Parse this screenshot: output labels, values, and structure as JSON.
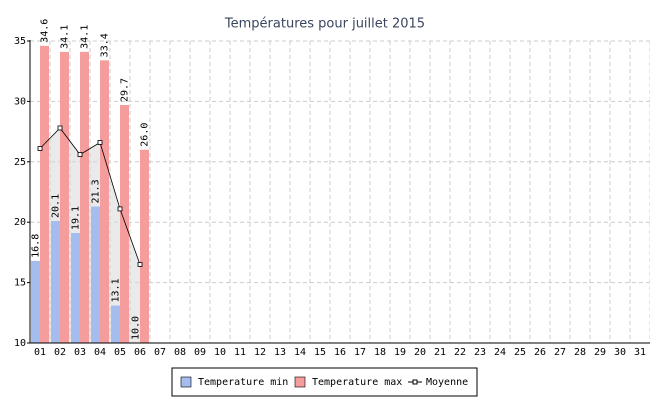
{
  "chart_data": {
    "type": "bar",
    "title": "Températures pour juillet 2015",
    "categories": [
      "01",
      "02",
      "03",
      "04",
      "05",
      "06",
      "07",
      "08",
      "09",
      "10",
      "11",
      "12",
      "13",
      "14",
      "15",
      "16",
      "17",
      "18",
      "19",
      "20",
      "21",
      "22",
      "23",
      "24",
      "25",
      "26",
      "27",
      "28",
      "29",
      "30",
      "31"
    ],
    "series": [
      {
        "name": "Temperature min",
        "color": "#a4bdee",
        "values": [
          16.8,
          20.1,
          19.1,
          21.3,
          13.1,
          10,
          null,
          null,
          null,
          null,
          null,
          null,
          null,
          null,
          null,
          null,
          null,
          null,
          null,
          null,
          null,
          null,
          null,
          null,
          null,
          null,
          null,
          null,
          null,
          null,
          null
        ],
        "value_labels": [
          "16.8",
          "20.1",
          "19.1",
          "21.3",
          "13.1",
          "10.0",
          null,
          null,
          null,
          null,
          null,
          null,
          null,
          null,
          null,
          null,
          null,
          null,
          null,
          null,
          null,
          null,
          null,
          null,
          null,
          null,
          null,
          null,
          null,
          null,
          null
        ]
      },
      {
        "name": "Temperature max",
        "color": "#f59c9c",
        "values": [
          34.6,
          34.1,
          34.1,
          33.4,
          29.7,
          26,
          null,
          null,
          null,
          null,
          null,
          null,
          null,
          null,
          null,
          null,
          null,
          null,
          null,
          null,
          null,
          null,
          null,
          null,
          null,
          null,
          null,
          null,
          null,
          null,
          null
        ],
        "value_labels": [
          "34.6",
          "34.1",
          "34.1",
          "33.4",
          "29.7",
          "26.0",
          null,
          null,
          null,
          null,
          null,
          null,
          null,
          null,
          null,
          null,
          null,
          null,
          null,
          null,
          null,
          null,
          null,
          null,
          null,
          null,
          null,
          null,
          null,
          null,
          null
        ]
      },
      {
        "name": "Moyenne",
        "type": "line",
        "color": "#000000",
        "values": [
          26.1,
          27.8,
          25.6,
          26.6,
          21.1,
          16.5,
          null,
          null,
          null,
          null,
          null,
          null,
          null,
          null,
          null,
          null,
          null,
          null,
          null,
          null,
          null,
          null,
          null,
          null,
          null,
          null,
          null,
          null,
          null,
          null,
          null
        ]
      }
    ],
    "ylim": [
      10,
      35
    ],
    "yticks": [
      10,
      15,
      20,
      25,
      30,
      35
    ],
    "grid": true
  }
}
